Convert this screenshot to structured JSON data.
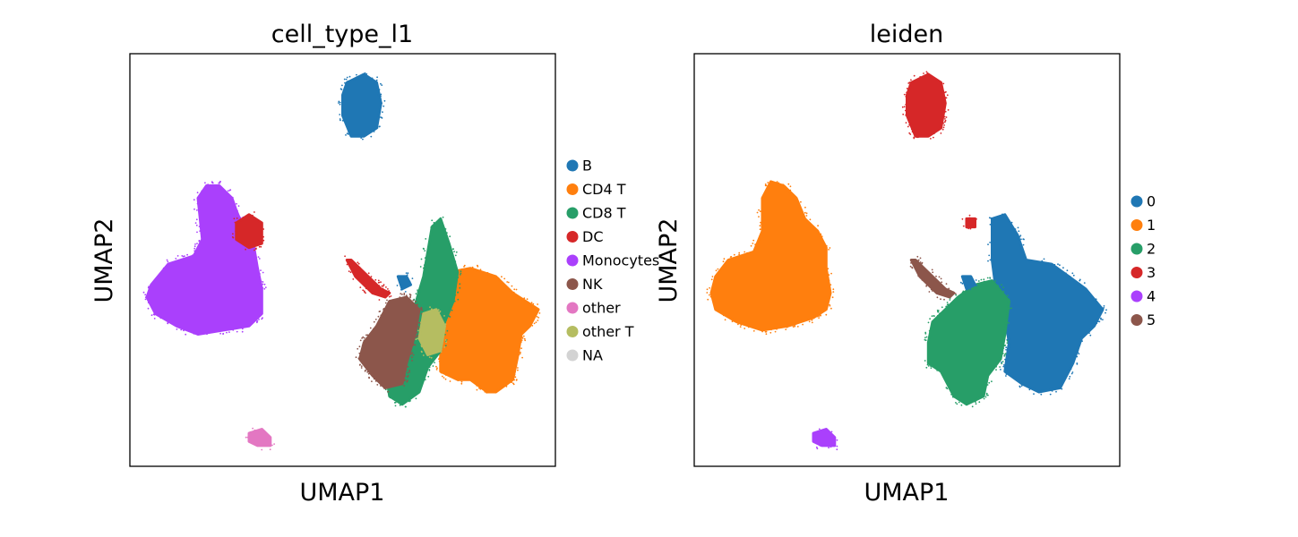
{
  "chart_data": [
    {
      "type": "scatter",
      "title": "cell_type_l1",
      "xlabel": "UMAP1",
      "ylabel": "UMAP2",
      "xticks": [],
      "yticks": [],
      "grid": false,
      "legend_position": "right",
      "legend": [
        {
          "label": "B",
          "color": "#1f77b4"
        },
        {
          "label": "CD4 T",
          "color": "#ff7f0e"
        },
        {
          "label": "CD8 T",
          "color": "#279e68"
        },
        {
          "label": "DC",
          "color": "#d62728"
        },
        {
          "label": "Monocytes",
          "color": "#aa40fc"
        },
        {
          "label": "NK",
          "color": "#8c564b"
        },
        {
          "label": "other",
          "color": "#e377c2"
        },
        {
          "label": "other T",
          "color": "#b5bd61"
        },
        {
          "label": "NA",
          "color": "#d3d3d3"
        }
      ],
      "clusters": [
        {
          "label": "Monocytes",
          "color": "#aa40fc",
          "shape": [
            [
              0.05,
              0.56
            ],
            [
              0.09,
              0.51
            ],
            [
              0.15,
              0.49
            ],
            [
              0.17,
              0.45
            ],
            [
              0.16,
              0.35
            ],
            [
              0.18,
              0.32
            ],
            [
              0.21,
              0.32
            ],
            [
              0.24,
              0.35
            ],
            [
              0.25,
              0.38
            ],
            [
              0.27,
              0.43
            ],
            [
              0.29,
              0.46
            ],
            [
              0.3,
              0.52
            ],
            [
              0.31,
              0.57
            ],
            [
              0.31,
              0.63
            ],
            [
              0.28,
              0.66
            ],
            [
              0.22,
              0.67
            ],
            [
              0.16,
              0.68
            ],
            [
              0.11,
              0.66
            ],
            [
              0.06,
              0.63
            ],
            [
              0.04,
              0.59
            ]
          ]
        },
        {
          "label": "DC",
          "color": "#d62728",
          "shape": [
            [
              0.25,
              0.41
            ],
            [
              0.28,
              0.39
            ],
            [
              0.31,
              0.41
            ],
            [
              0.31,
              0.46
            ],
            [
              0.28,
              0.47
            ],
            [
              0.25,
              0.45
            ]
          ]
        },
        {
          "label": "B",
          "color": "#1f77b4",
          "shape": [
            [
              0.51,
              0.07
            ],
            [
              0.55,
              0.05
            ],
            [
              0.58,
              0.07
            ],
            [
              0.59,
              0.12
            ],
            [
              0.58,
              0.18
            ],
            [
              0.55,
              0.2
            ],
            [
              0.52,
              0.2
            ],
            [
              0.5,
              0.15
            ],
            [
              0.5,
              0.1
            ]
          ]
        },
        {
          "label": "CD4 T",
          "color": "#ff7f0e",
          "shape": [
            [
              0.72,
              0.58
            ],
            [
              0.75,
              0.53
            ],
            [
              0.8,
              0.52
            ],
            [
              0.86,
              0.54
            ],
            [
              0.9,
              0.58
            ],
            [
              0.96,
              0.62
            ],
            [
              0.94,
              0.66
            ],
            [
              0.92,
              0.68
            ],
            [
              0.91,
              0.74
            ],
            [
              0.9,
              0.79
            ],
            [
              0.86,
              0.82
            ],
            [
              0.84,
              0.82
            ],
            [
              0.8,
              0.79
            ],
            [
              0.77,
              0.79
            ],
            [
              0.73,
              0.77
            ],
            [
              0.73,
              0.7
            ],
            [
              0.72,
              0.64
            ]
          ]
        },
        {
          "label": "CD8 T",
          "color": "#279e68",
          "shape": [
            [
              0.67,
              0.61
            ],
            [
              0.69,
              0.54
            ],
            [
              0.71,
              0.42
            ],
            [
              0.73,
              0.4
            ],
            [
              0.75,
              0.46
            ],
            [
              0.77,
              0.53
            ],
            [
              0.76,
              0.6
            ],
            [
              0.74,
              0.65
            ],
            [
              0.73,
              0.72
            ],
            [
              0.7,
              0.76
            ],
            [
              0.68,
              0.82
            ],
            [
              0.64,
              0.85
            ],
            [
              0.61,
              0.83
            ],
            [
              0.6,
              0.76
            ],
            [
              0.61,
              0.7
            ],
            [
              0.63,
              0.64
            ]
          ]
        },
        {
          "label": "NK",
          "color": "#8c564b",
          "shape": [
            [
              0.58,
              0.66
            ],
            [
              0.61,
              0.6
            ],
            [
              0.65,
              0.59
            ],
            [
              0.68,
              0.62
            ],
            [
              0.67,
              0.68
            ],
            [
              0.65,
              0.75
            ],
            [
              0.64,
              0.8
            ],
            [
              0.6,
              0.81
            ],
            [
              0.57,
              0.78
            ],
            [
              0.54,
              0.74
            ],
            [
              0.55,
              0.7
            ]
          ]
        },
        {
          "label": "other T",
          "color": "#b5bd61",
          "shape": [
            [
              0.69,
              0.63
            ],
            [
              0.72,
              0.62
            ],
            [
              0.74,
              0.66
            ],
            [
              0.73,
              0.72
            ],
            [
              0.7,
              0.73
            ],
            [
              0.68,
              0.69
            ]
          ]
        },
        {
          "label": "other",
          "color": "#e377c2",
          "shape": [
            [
              0.28,
              0.92
            ],
            [
              0.31,
              0.91
            ],
            [
              0.33,
              0.93
            ],
            [
              0.33,
              0.95
            ],
            [
              0.3,
              0.95
            ],
            [
              0.28,
              0.94
            ]
          ]
        },
        {
          "label": "DC",
          "color": "#d62728",
          "shape": [
            [
              0.51,
              0.5
            ],
            [
              0.52,
              0.5
            ],
            [
              0.59,
              0.57
            ],
            [
              0.61,
              0.58
            ],
            [
              0.6,
              0.59
            ],
            [
              0.57,
              0.58
            ],
            [
              0.53,
              0.54
            ]
          ]
        },
        {
          "label": "B",
          "color": "#1f77b4",
          "shape": [
            [
              0.63,
              0.54
            ],
            [
              0.65,
              0.54
            ],
            [
              0.66,
              0.56
            ],
            [
              0.64,
              0.57
            ]
          ]
        }
      ]
    },
    {
      "type": "scatter",
      "title": "leiden",
      "xlabel": "UMAP1",
      "ylabel": "UMAP2",
      "xticks": [],
      "yticks": [],
      "grid": false,
      "legend_position": "right",
      "legend": [
        {
          "label": "0",
          "color": "#1f77b4"
        },
        {
          "label": "1",
          "color": "#ff7f0e"
        },
        {
          "label": "2",
          "color": "#279e68"
        },
        {
          "label": "3",
          "color": "#d62728"
        },
        {
          "label": "4",
          "color": "#aa40fc"
        },
        {
          "label": "5",
          "color": "#8c564b"
        }
      ],
      "clusters": [
        {
          "label": "1",
          "color": "#ff7f0e",
          "shape": [
            [
              0.05,
              0.54
            ],
            [
              0.08,
              0.5
            ],
            [
              0.14,
              0.48
            ],
            [
              0.16,
              0.43
            ],
            [
              0.16,
              0.35
            ],
            [
              0.18,
              0.31
            ],
            [
              0.21,
              0.32
            ],
            [
              0.24,
              0.35
            ],
            [
              0.26,
              0.4
            ],
            [
              0.29,
              0.43
            ],
            [
              0.31,
              0.47
            ],
            [
              0.31,
              0.52
            ],
            [
              0.32,
              0.58
            ],
            [
              0.31,
              0.62
            ],
            [
              0.28,
              0.64
            ],
            [
              0.22,
              0.66
            ],
            [
              0.16,
              0.67
            ],
            [
              0.1,
              0.65
            ],
            [
              0.05,
              0.62
            ],
            [
              0.04,
              0.58
            ]
          ]
        },
        {
          "label": "3",
          "color": "#d62728",
          "shape": [
            [
              0.51,
              0.07
            ],
            [
              0.55,
              0.05
            ],
            [
              0.58,
              0.07
            ],
            [
              0.59,
              0.12
            ],
            [
              0.58,
              0.18
            ],
            [
              0.55,
              0.2
            ],
            [
              0.52,
              0.2
            ],
            [
              0.5,
              0.15
            ],
            [
              0.5,
              0.1
            ]
          ]
        },
        {
          "label": "0",
          "color": "#1f77b4",
          "shape": [
            [
              0.7,
              0.4
            ],
            [
              0.73,
              0.39
            ],
            [
              0.76,
              0.44
            ],
            [
              0.78,
              0.5
            ],
            [
              0.84,
              0.51
            ],
            [
              0.88,
              0.54
            ],
            [
              0.92,
              0.57
            ],
            [
              0.96,
              0.62
            ],
            [
              0.94,
              0.66
            ],
            [
              0.91,
              0.69
            ],
            [
              0.89,
              0.75
            ],
            [
              0.86,
              0.81
            ],
            [
              0.81,
              0.82
            ],
            [
              0.77,
              0.8
            ],
            [
              0.73,
              0.77
            ],
            [
              0.74,
              0.7
            ],
            [
              0.73,
              0.64
            ],
            [
              0.71,
              0.58
            ],
            [
              0.7,
              0.5
            ]
          ]
        },
        {
          "label": "2",
          "color": "#279e68",
          "shape": [
            [
              0.55,
              0.7
            ],
            [
              0.56,
              0.65
            ],
            [
              0.59,
              0.62
            ],
            [
              0.62,
              0.59
            ],
            [
              0.66,
              0.56
            ],
            [
              0.7,
              0.55
            ],
            [
              0.74,
              0.6
            ],
            [
              0.73,
              0.68
            ],
            [
              0.72,
              0.74
            ],
            [
              0.69,
              0.78
            ],
            [
              0.68,
              0.83
            ],
            [
              0.64,
              0.85
            ],
            [
              0.61,
              0.83
            ],
            [
              0.58,
              0.77
            ],
            [
              0.55,
              0.75
            ]
          ]
        },
        {
          "label": "5",
          "color": "#8c564b",
          "shape": [
            [
              0.51,
              0.5
            ],
            [
              0.52,
              0.5
            ],
            [
              0.59,
              0.57
            ],
            [
              0.61,
              0.58
            ],
            [
              0.6,
              0.59
            ],
            [
              0.57,
              0.58
            ],
            [
              0.53,
              0.54
            ]
          ]
        },
        {
          "label": "4",
          "color": "#aa40fc",
          "shape": [
            [
              0.28,
              0.92
            ],
            [
              0.31,
              0.91
            ],
            [
              0.33,
              0.93
            ],
            [
              0.33,
              0.95
            ],
            [
              0.3,
              0.95
            ],
            [
              0.28,
              0.94
            ]
          ]
        },
        {
          "label": "3",
          "color": "#d62728",
          "shape": [
            [
              0.64,
              0.4
            ],
            [
              0.66,
              0.4
            ],
            [
              0.66,
              0.42
            ],
            [
              0.64,
              0.42
            ]
          ]
        },
        {
          "label": "0",
          "color": "#1f77b4",
          "shape": [
            [
              0.63,
              0.54
            ],
            [
              0.65,
              0.54
            ],
            [
              0.66,
              0.56
            ],
            [
              0.64,
              0.57
            ]
          ]
        }
      ]
    }
  ]
}
